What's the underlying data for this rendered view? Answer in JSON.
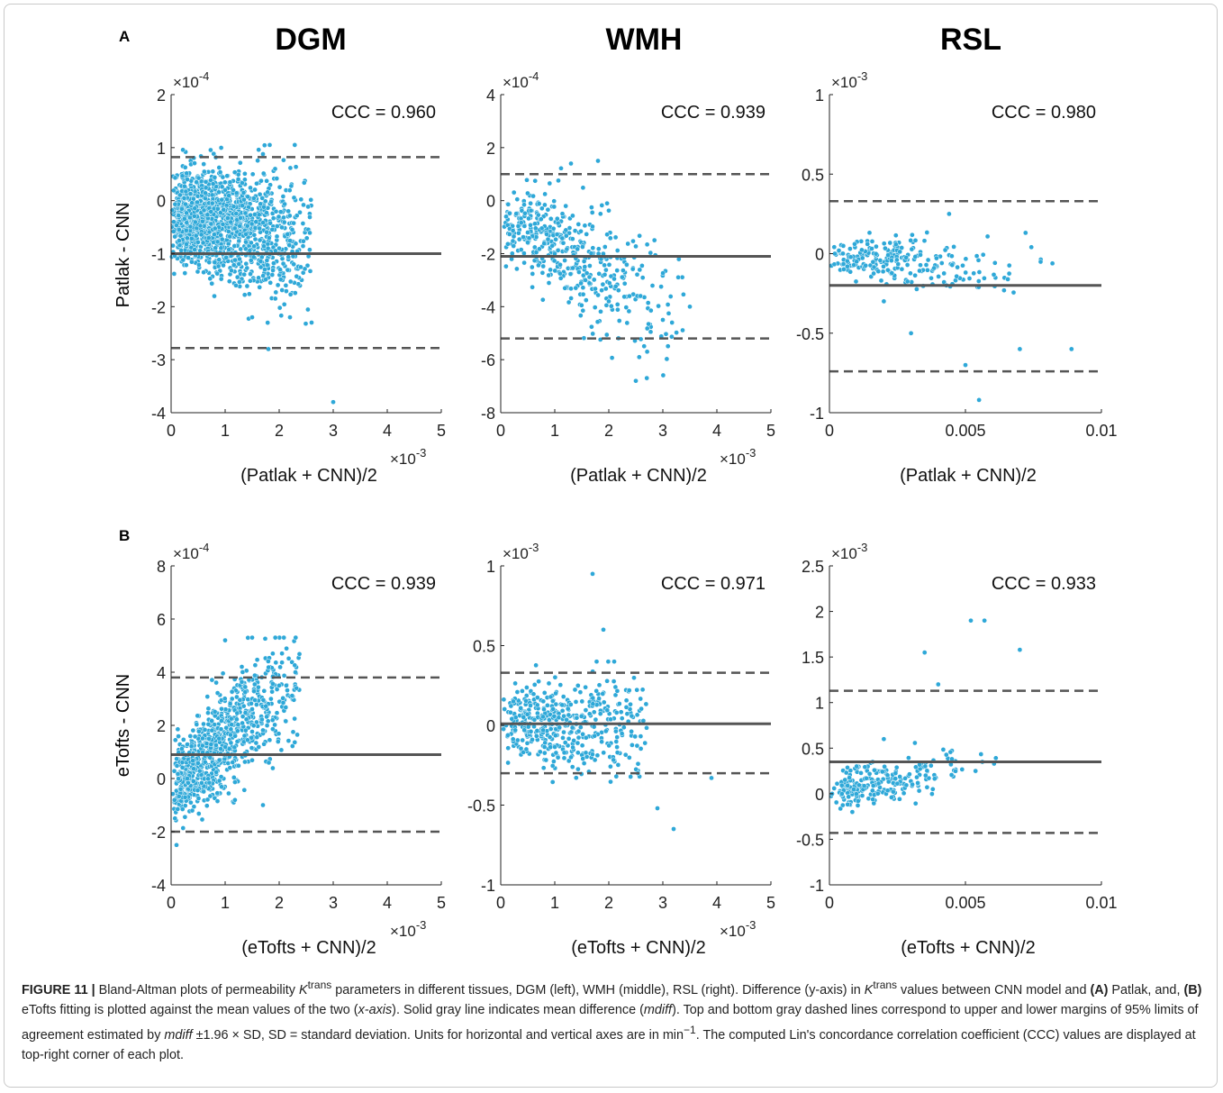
{
  "figure": {
    "panel_labels": [
      "A",
      "B"
    ],
    "column_titles": [
      "DGM",
      "WMH",
      "RSL"
    ],
    "row_ylabels": [
      "Patlak - CNN",
      "eTofts - CNN"
    ],
    "row_xlabels": [
      "(Patlak + CNN)/2",
      "(eTofts + CNN)/2"
    ]
  },
  "chart_data": [
    {
      "id": "A-DGM",
      "type": "scatter",
      "row": 0,
      "col": 0,
      "xlabel": "(Patlak + CNN)/2",
      "ylabel": "Patlak - CNN",
      "xlim": [
        0,
        0.005
      ],
      "ylim": [
        -0.0004,
        0.0002
      ],
      "xticks": [
        0,
        0.001,
        0.002,
        0.003,
        0.004,
        0.005
      ],
      "xticklabels": [
        "0",
        "1",
        "2",
        "3",
        "4",
        "5"
      ],
      "xexp": "-3",
      "yticks": [
        -0.0004,
        -0.0003,
        -0.0002,
        -0.0001,
        0,
        0.0001,
        0.0002
      ],
      "yticklabels": [
        "-4",
        "-3",
        "-2",
        "-1",
        "0",
        "1",
        "2"
      ],
      "yexp": "-4",
      "annotation": "CCC = 0.960",
      "mean_diff": -0.0001,
      "upper_loa": 8.2e-05,
      "lower_loa": -0.000278,
      "n_points": 1500,
      "approx_points": [
        [
          5e-05,
          -4e-05
        ],
        [
          0.0003,
          4e-05
        ],
        [
          0.0006,
          -0.0001
        ],
        [
          0.0008,
          -0.00018
        ],
        [
          0.001,
          2e-05
        ],
        [
          0.0012,
          -0.00016
        ],
        [
          0.0015,
          -0.00022
        ],
        [
          0.0018,
          -0.00028
        ],
        [
          0.002,
          -9e-05
        ],
        [
          0.0022,
          -0.00022
        ],
        [
          0.0026,
          -0.00023
        ],
        [
          0.003,
          -0.00038
        ]
      ],
      "point_spec": {
        "xmax": 0.0026,
        "xfrac": 0.45,
        "scale": 1.0,
        "center": -2.5e-05,
        "slope": -0.3,
        "spread": 5.5e-05,
        "yrange": [
          -0.0004,
          0.000105
        ],
        "seed": 11
      }
    },
    {
      "id": "A-WMH",
      "type": "scatter",
      "row": 0,
      "col": 1,
      "xlabel": "(Patlak + CNN)/2",
      "ylabel": "",
      "xlim": [
        0,
        0.005
      ],
      "ylim": [
        -0.0008,
        0.0004
      ],
      "xticks": [
        0,
        0.001,
        0.002,
        0.003,
        0.004,
        0.005
      ],
      "xticklabels": [
        "0",
        "1",
        "2",
        "3",
        "4",
        "5"
      ],
      "xexp": "-3",
      "yticks": [
        -0.0008,
        -0.0006,
        -0.0004,
        -0.0002,
        0,
        0.0002,
        0.0004
      ],
      "yticklabels": [
        "-8",
        "-6",
        "-4",
        "-2",
        "0",
        "2",
        "4"
      ],
      "yexp": "-4",
      "annotation": "CCC = 0.939",
      "mean_diff": -0.00021,
      "upper_loa": 0.0001,
      "lower_loa": -0.00052,
      "n_points": 450,
      "approx_points": [
        [
          0.0001,
          -6e-05
        ],
        [
          0.0005,
          -0.00012
        ],
        [
          0.001,
          -0.0002
        ],
        [
          0.0013,
          0.00014
        ],
        [
          0.0018,
          0.00015
        ],
        [
          0.002,
          -0.00038
        ],
        [
          0.0025,
          -0.00068
        ],
        [
          0.003,
          -0.00045
        ],
        [
          0.0035,
          -0.0004
        ]
      ],
      "point_spec": {
        "xmax": 0.0034,
        "xfrac": 0.5,
        "scale": 1.0,
        "center": -6e-05,
        "slope": -0.95,
        "spread": 0.00011,
        "yrange": [
          -0.00078,
          0.00015
        ],
        "seed": 23
      }
    },
    {
      "id": "A-RSL",
      "type": "scatter",
      "row": 0,
      "col": 2,
      "xlabel": "(Patlak + CNN)/2",
      "ylabel": "",
      "xlim": [
        0,
        0.01
      ],
      "ylim": [
        -0.001,
        0.001
      ],
      "xticks": [
        0,
        0.005,
        0.01
      ],
      "xticklabels": [
        "0",
        "0.005",
        "0.01"
      ],
      "xexp": "",
      "yticks": [
        -0.001,
        -0.0005,
        0,
        0.0005,
        0.001
      ],
      "yticklabels": [
        "-1",
        "-0.5",
        "0",
        "0.5",
        "1"
      ],
      "yexp": "-3",
      "annotation": "CCC = 0.980",
      "mean_diff": -0.0002,
      "upper_loa": 0.00033,
      "lower_loa": -0.00074,
      "n_points": 230,
      "approx_points": [
        [
          0.0002,
          0.0
        ],
        [
          0.001,
          -5e-05
        ],
        [
          0.002,
          -0.0003
        ],
        [
          0.003,
          -0.0005
        ],
        [
          0.0044,
          0.00025
        ],
        [
          0.005,
          -0.0007
        ],
        [
          0.0055,
          -0.00092
        ],
        [
          0.007,
          -0.0006
        ],
        [
          0.0089,
          -0.0006
        ]
      ],
      "point_spec": {
        "xmax": 0.009,
        "xfrac": 0.35,
        "scale": 1.0,
        "center": -2e-05,
        "slope": -0.09,
        "spread": 8e-05,
        "yrange": [
          -0.00093,
          0.00025
        ],
        "seed": 37
      }
    },
    {
      "id": "B-DGM",
      "type": "scatter",
      "row": 1,
      "col": 0,
      "xlabel": "(eTofts + CNN)/2",
      "ylabel": "eTofts - CNN",
      "xlim": [
        0,
        0.005
      ],
      "ylim": [
        -0.0004,
        0.0008
      ],
      "xticks": [
        0,
        0.001,
        0.002,
        0.003,
        0.004,
        0.005
      ],
      "xticklabels": [
        "0",
        "1",
        "2",
        "3",
        "4",
        "5"
      ],
      "xexp": "-3",
      "yticks": [
        -0.0004,
        -0.0002,
        0,
        0.0002,
        0.0004,
        0.0006,
        0.0008
      ],
      "yticklabels": [
        "-4",
        "-2",
        "0",
        "2",
        "4",
        "6",
        "8"
      ],
      "yexp": "-4",
      "annotation": "CCC = 0.939",
      "mean_diff": 9e-05,
      "upper_loa": 0.00038,
      "lower_loa": -0.0002,
      "n_points": 800,
      "approx_points": [
        [
          0.0001,
          -0.00025
        ],
        [
          0.0003,
          0.0
        ],
        [
          0.0007,
          0.00015
        ],
        [
          0.001,
          0.00052
        ],
        [
          0.0015,
          0.00053
        ],
        [
          0.002,
          0.00035
        ],
        [
          0.0023,
          0.0004
        ],
        [
          0.0017,
          -0.0001
        ]
      ],
      "point_spec": {
        "xmax": 0.0024,
        "xfrac": 0.5,
        "scale": 1.0,
        "center": -5e-05,
        "slope": 1.6,
        "spread": 0.000105,
        "yrange": [
          -0.00026,
          0.00053
        ],
        "seed": 51
      }
    },
    {
      "id": "B-WMH",
      "type": "scatter",
      "row": 1,
      "col": 1,
      "xlabel": "(eTofts + CNN)/2",
      "ylabel": "",
      "xlim": [
        0,
        0.005
      ],
      "ylim": [
        -0.001,
        0.001
      ],
      "xticks": [
        0,
        0.001,
        0.002,
        0.003,
        0.004,
        0.005
      ],
      "xticklabels": [
        "0",
        "1",
        "2",
        "3",
        "4",
        "5"
      ],
      "xexp": "-3",
      "yticks": [
        -0.001,
        -0.0005,
        0,
        0.0005,
        0.001
      ],
      "yticklabels": [
        "-1",
        "-0.5",
        "0",
        "0.5",
        "1"
      ],
      "yexp": "-3",
      "annotation": "CCC = 0.971",
      "mean_diff": 1e-05,
      "upper_loa": 0.00033,
      "lower_loa": -0.0003,
      "n_points": 450,
      "approx_points": [
        [
          0.0001,
          0.0
        ],
        [
          0.0008,
          0.0001
        ],
        [
          0.0013,
          -0.0002
        ],
        [
          0.0017,
          0.00095
        ],
        [
          0.0019,
          0.0006
        ],
        [
          0.0021,
          0.0004
        ],
        [
          0.0029,
          -0.00052
        ],
        [
          0.0032,
          -0.00065
        ],
        [
          0.0039,
          -0.00033
        ]
      ],
      "point_spec": {
        "xmax": 0.0027,
        "xfrac": 0.6,
        "scale": 1.0,
        "center": 2e-05,
        "slope": 0.0,
        "spread": 0.00014,
        "yrange": [
          -0.00047,
          0.0004
        ],
        "seed": 63
      }
    },
    {
      "id": "B-RSL",
      "type": "scatter",
      "row": 1,
      "col": 2,
      "xlabel": "(eTofts + CNN)/2",
      "ylabel": "",
      "xlim": [
        0,
        0.01
      ],
      "ylim": [
        -0.001,
        0.0025
      ],
      "xticks": [
        0,
        0.005,
        0.01
      ],
      "xticklabels": [
        "0",
        "0.005",
        "0.01"
      ],
      "xexp": "",
      "yticks": [
        -0.001,
        -0.0005,
        0,
        0.0005,
        0.001,
        0.0015,
        0.002,
        0.0025
      ],
      "yticklabels": [
        "-1",
        "-0.5",
        "0",
        "0.5",
        "1",
        "1.5",
        "2",
        "2.5"
      ],
      "yexp": "-3",
      "annotation": "CCC = 0.933",
      "mean_diff": 0.00035,
      "upper_loa": 0.00113,
      "lower_loa": -0.00043,
      "n_points": 230,
      "approx_points": [
        [
          0.0001,
          0.0
        ],
        [
          0.001,
          0.0003
        ],
        [
          0.002,
          0.0006
        ],
        [
          0.0035,
          0.00155
        ],
        [
          0.004,
          0.0012
        ],
        [
          0.0052,
          0.0019
        ],
        [
          0.0057,
          0.0019
        ],
        [
          0.007,
          0.00158
        ],
        [
          0.0038,
          5e-05
        ]
      ],
      "point_spec": {
        "xmax": 0.0072,
        "xfrac": 0.3,
        "scale": 1.0,
        "center": 2e-05,
        "slope": 0.32,
        "spread": 0.00013,
        "yrange": [
          -0.0002,
          0.0019
        ],
        "seed": 79
      }
    }
  ],
  "caption": {
    "label": "FIGURE 11 |",
    "t1": " Bland-Altman plots of permeability ",
    "k": "K",
    "trans": "trans",
    "t2": " parameters in different tissues, DGM (left), WMH (middle), RSL (right). Difference (y-axis) in ",
    "t3": " values between CNN model and ",
    "bA": "(A)",
    "t4": " Patlak, and, ",
    "bB": "(B)",
    "t5": " eTofts fitting is plotted against the mean values of the two (",
    "xaxis": "x-axis",
    "t6": "). Solid gray line indicates mean difference (",
    "mdiff": "mdiff",
    "t7": "). Top and bottom gray dashed lines correspond to upper and lower margins of 95% limits of agreement estimated by ",
    "t8": " ±1.96 × SD, SD = standard deviation. Units for horizontal and vertical axes are in min",
    "minus1": "−1",
    "t9": ". The computed Lin's concordance correlation coefficient (CCC) values are displayed at top-right corner of each plot."
  },
  "colors": {
    "points": "#2ea8d8",
    "points_edge": "#ffffff",
    "mean_line": "#555555",
    "loa_line": "#555555",
    "axis": "#222222"
  }
}
